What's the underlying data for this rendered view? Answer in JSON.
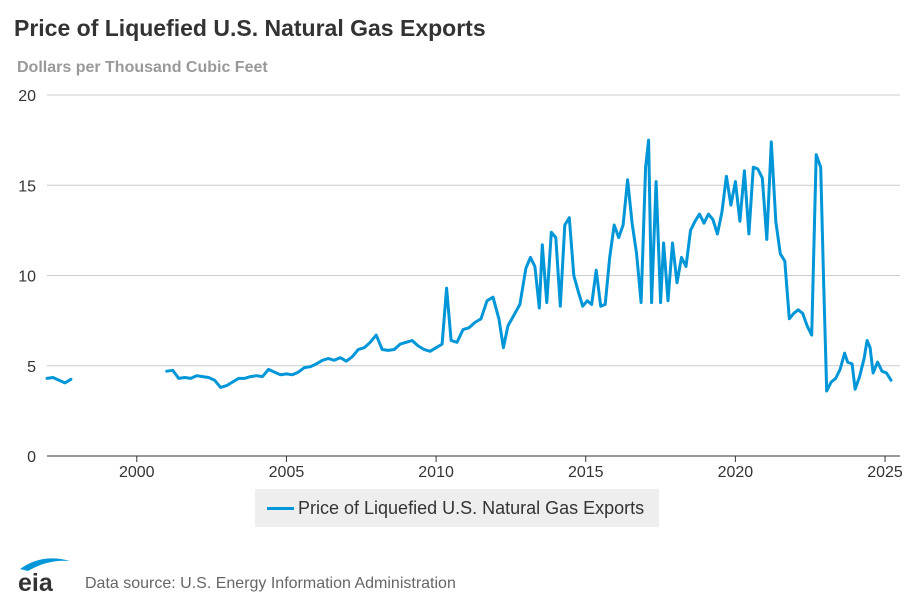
{
  "header": {
    "title": "Price of Liquefied U.S. Natural Gas Exports",
    "subtitle": "Dollars per Thousand Cubic Feet"
  },
  "footer": {
    "logo_text": "eia",
    "source": "Data source: U.S. Energy Information Administration"
  },
  "colors": {
    "series": "#0096d7",
    "grid": "#cccccc",
    "text": "#333333"
  },
  "chart_data": {
    "type": "line",
    "title": "Price of Liquefied U.S. Natural Gas Exports",
    "ylabel": "Dollars per Thousand Cubic Feet",
    "xlabel": "",
    "xlim": [
      1997.0,
      2025.5
    ],
    "ylim": [
      0,
      20
    ],
    "x_ticks": [
      2000,
      2005,
      2010,
      2015,
      2020,
      2025
    ],
    "y_ticks": [
      0,
      5,
      10,
      15,
      20
    ],
    "grid": "horizontal",
    "legend": "bottom-center",
    "series": [
      {
        "name": "Price of Liquefied U.S. Natural Gas Exports",
        "color": "#0096d7",
        "segments": [
          [
            [
              1997.0,
              4.3
            ],
            [
              1997.2,
              4.35
            ],
            [
              1997.4,
              4.2
            ],
            [
              1997.6,
              4.05
            ],
            [
              1997.8,
              4.25
            ]
          ],
          [
            [
              2001.0,
              4.7
            ],
            [
              2001.2,
              4.75
            ],
            [
              2001.4,
              4.3
            ],
            [
              2001.6,
              4.35
            ],
            [
              2001.8,
              4.3
            ],
            [
              2002.0,
              4.45
            ],
            [
              2002.2,
              4.4
            ],
            [
              2002.4,
              4.35
            ],
            [
              2002.6,
              4.2
            ],
            [
              2002.8,
              3.8
            ],
            [
              2003.0,
              3.9
            ],
            [
              2003.2,
              4.1
            ],
            [
              2003.4,
              4.3
            ],
            [
              2003.6,
              4.3
            ],
            [
              2003.8,
              4.4
            ],
            [
              2004.0,
              4.45
            ],
            [
              2004.2,
              4.4
            ],
            [
              2004.4,
              4.8
            ],
            [
              2004.6,
              4.65
            ],
            [
              2004.8,
              4.5
            ],
            [
              2005.0,
              4.55
            ],
            [
              2005.2,
              4.5
            ],
            [
              2005.4,
              4.65
            ],
            [
              2005.6,
              4.9
            ],
            [
              2005.8,
              4.95
            ],
            [
              2006.0,
              5.1
            ],
            [
              2006.2,
              5.3
            ],
            [
              2006.4,
              5.4
            ],
            [
              2006.6,
              5.3
            ],
            [
              2006.8,
              5.45
            ],
            [
              2007.0,
              5.25
            ],
            [
              2007.2,
              5.5
            ],
            [
              2007.4,
              5.9
            ],
            [
              2007.6,
              6.0
            ],
            [
              2007.8,
              6.3
            ],
            [
              2008.0,
              6.7
            ],
            [
              2008.2,
              5.9
            ],
            [
              2008.4,
              5.85
            ],
            [
              2008.6,
              5.9
            ],
            [
              2008.8,
              6.2
            ],
            [
              2009.0,
              6.3
            ],
            [
              2009.2,
              6.4
            ],
            [
              2009.4,
              6.1
            ],
            [
              2009.6,
              5.9
            ],
            [
              2009.8,
              5.8
            ],
            [
              2010.0,
              6.0
            ],
            [
              2010.2,
              6.2
            ],
            [
              2010.35,
              9.3
            ],
            [
              2010.5,
              6.4
            ],
            [
              2010.7,
              6.3
            ],
            [
              2010.9,
              7.0
            ],
            [
              2011.1,
              7.1
            ],
            [
              2011.3,
              7.4
            ],
            [
              2011.5,
              7.6
            ],
            [
              2011.7,
              8.6
            ],
            [
              2011.9,
              8.8
            ],
            [
              2012.1,
              7.6
            ],
            [
              2012.25,
              6.0
            ],
            [
              2012.4,
              7.2
            ],
            [
              2012.6,
              7.8
            ],
            [
              2012.8,
              8.4
            ],
            [
              2013.0,
              10.4
            ],
            [
              2013.15,
              11.0
            ],
            [
              2013.3,
              10.5
            ],
            [
              2013.45,
              8.2
            ],
            [
              2013.55,
              11.7
            ],
            [
              2013.7,
              8.5
            ],
            [
              2013.85,
              12.4
            ],
            [
              2014.0,
              12.1
            ],
            [
              2014.15,
              8.3
            ],
            [
              2014.3,
              12.8
            ],
            [
              2014.45,
              13.2
            ],
            [
              2014.6,
              10.0
            ],
            [
              2014.75,
              9.1
            ],
            [
              2014.9,
              8.3
            ],
            [
              2015.05,
              8.6
            ],
            [
              2015.2,
              8.4
            ],
            [
              2015.35,
              10.3
            ],
            [
              2015.5,
              8.3
            ],
            [
              2015.65,
              8.4
            ],
            [
              2015.8,
              11.0
            ],
            [
              2015.95,
              12.8
            ],
            [
              2016.1,
              12.1
            ],
            [
              2016.25,
              12.8
            ],
            [
              2016.4,
              15.3
            ],
            [
              2016.55,
              12.9
            ],
            [
              2016.7,
              11.2
            ],
            [
              2016.85,
              8.5
            ],
            [
              2017.0,
              16.0
            ],
            [
              2017.1,
              17.5
            ],
            [
              2017.2,
              8.5
            ],
            [
              2017.35,
              15.2
            ],
            [
              2017.5,
              8.5
            ],
            [
              2017.6,
              11.8
            ],
            [
              2017.75,
              8.6
            ],
            [
              2017.9,
              11.8
            ],
            [
              2018.05,
              9.6
            ],
            [
              2018.2,
              11.0
            ],
            [
              2018.35,
              10.5
            ],
            [
              2018.5,
              12.5
            ],
            [
              2018.65,
              13.0
            ],
            [
              2018.8,
              13.4
            ],
            [
              2018.95,
              12.9
            ],
            [
              2019.1,
              13.4
            ],
            [
              2019.25,
              13.1
            ],
            [
              2019.4,
              12.3
            ],
            [
              2019.55,
              13.5
            ],
            [
              2019.7,
              15.5
            ],
            [
              2019.85,
              13.9
            ],
            [
              2020.0,
              15.2
            ],
            [
              2020.15,
              13.0
            ],
            [
              2020.3,
              15.8
            ],
            [
              2020.45,
              12.3
            ],
            [
              2020.6,
              16.0
            ],
            [
              2020.75,
              15.9
            ],
            [
              2020.9,
              15.4
            ],
            [
              2021.05,
              12.0
            ],
            [
              2021.2,
              17.4
            ],
            [
              2021.35,
              13.0
            ],
            [
              2021.5,
              11.2
            ],
            [
              2021.65,
              10.8
            ],
            [
              2021.8,
              7.6
            ],
            [
              2021.95,
              7.9
            ],
            [
              2022.1,
              8.1
            ],
            [
              2022.25,
              7.9
            ],
            [
              2022.4,
              7.2
            ],
            [
              2022.55,
              6.7
            ],
            [
              2022.7,
              16.7
            ],
            [
              2022.85,
              16.0
            ],
            [
              2022.95,
              9.5
            ],
            [
              2023.05,
              3.6
            ],
            [
              2023.2,
              4.1
            ],
            [
              2023.35,
              4.3
            ],
            [
              2023.5,
              4.8
            ],
            [
              2023.65,
              5.7
            ],
            [
              2023.75,
              5.2
            ],
            [
              2023.9,
              5.1
            ],
            [
              2024.0,
              3.7
            ],
            [
              2024.15,
              4.4
            ],
            [
              2024.3,
              5.4
            ],
            [
              2024.4,
              6.4
            ],
            [
              2024.5,
              6.0
            ],
            [
              2024.6,
              4.6
            ],
            [
              2024.75,
              5.2
            ],
            [
              2024.9,
              4.7
            ],
            [
              2025.05,
              4.6
            ],
            [
              2025.2,
              4.2
            ]
          ]
        ]
      }
    ]
  }
}
